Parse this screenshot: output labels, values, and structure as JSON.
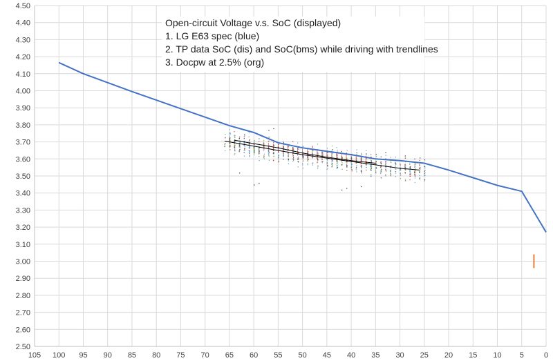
{
  "chart_data": {
    "type": "scatter",
    "title_lines": [
      "Open-circuit Voltage v.s. SoC (displayed)",
      "1. LG E63 spec (blue)",
      "2. TP data SoC (dis) and SoC(bms) while driving with trendlines",
      "3. Docpw at 2.5% (org)"
    ],
    "xlim": [
      105,
      0
    ],
    "ylim": [
      2.5,
      4.5
    ],
    "x_ticks": [
      105,
      100,
      95,
      90,
      85,
      80,
      75,
      70,
      65,
      60,
      55,
      50,
      45,
      40,
      35,
      30,
      25,
      20,
      15,
      10,
      5,
      0
    ],
    "y_ticks": [
      "2.50",
      "2.60",
      "2.70",
      "2.80",
      "2.90",
      "3.00",
      "3.10",
      "3.20",
      "3.30",
      "3.40",
      "3.50",
      "3.60",
      "3.70",
      "3.80",
      "3.90",
      "4.00",
      "4.10",
      "4.20",
      "4.30",
      "4.40",
      "4.50"
    ],
    "grid": true,
    "colors": {
      "spec": "#4472c4",
      "docpw": "#ed7d31",
      "trend": "#000000",
      "scatter_a": "#5b9bd5",
      "scatter_b": "#70ad47",
      "scatter_c": "#c0392b",
      "scatter_d": "#404040",
      "grid": "#d9d9d9"
    },
    "spec_curve": {
      "x": [
        100,
        95,
        85,
        75,
        65,
        60,
        55,
        50,
        45,
        40,
        35,
        30,
        25,
        20,
        15,
        10,
        5,
        0
      ],
      "y": [
        4.165,
        4.1,
        3.995,
        3.895,
        3.795,
        3.755,
        3.695,
        3.665,
        3.645,
        3.625,
        3.6,
        3.59,
        3.575,
        3.535,
        3.49,
        3.445,
        3.41,
        3.17
      ]
    },
    "trendline_dis": {
      "x": [
        66,
        60,
        55,
        50,
        45,
        40,
        35,
        30,
        26
      ],
      "y": [
        3.705,
        3.675,
        3.65,
        3.625,
        3.605,
        3.585,
        3.565,
        3.545,
        3.535
      ]
    },
    "trendline_bms": {
      "x": [
        64,
        60,
        55,
        50,
        45,
        40,
        35
      ],
      "y": [
        3.71,
        3.69,
        3.665,
        3.635,
        3.61,
        3.59,
        3.575
      ]
    },
    "docpw_segment": {
      "x": 2.5,
      "y_from": 2.96,
      "y_to": 3.04
    },
    "scatter_range": {
      "x_from": 66,
      "x_to": 25
    }
  }
}
